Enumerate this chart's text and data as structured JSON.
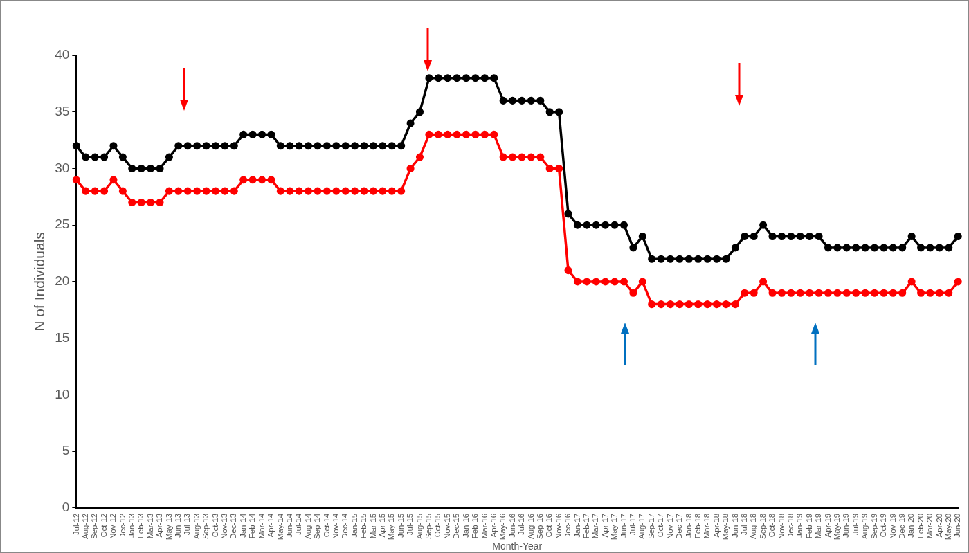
{
  "chart_data": {
    "type": "line",
    "xlabel": "Month-Year",
    "ylabel": "N of Individuals",
    "categories": [
      "Jul-12",
      "Aug-12",
      "Sep-12",
      "Oct-12",
      "Nov-12",
      "Dec-12",
      "Jan-13",
      "Feb-13",
      "Mar-13",
      "Apr-13",
      "May-13",
      "Jun-13",
      "Jul-13",
      "Aug-13",
      "Sep-13",
      "Oct-13",
      "Nov-13",
      "Dec-13",
      "Jan-14",
      "Feb-14",
      "Mar-14",
      "Apr-14",
      "May-14",
      "Jun-14",
      "Jul-14",
      "Aug-14",
      "Sep-14",
      "Oct-14",
      "Nov-14",
      "Dec-14",
      "Jan-15",
      "Feb-15",
      "Mar-15",
      "Apr-15",
      "May-15",
      "Jun-15",
      "Jul-15",
      "Aug-15",
      "Sep-15",
      "Oct-15",
      "Nov-15",
      "Dec-15",
      "Jan-16",
      "Feb-16",
      "Mar-16",
      "Apr-16",
      "May-16",
      "Jun-16",
      "Jul-16",
      "Aug-16",
      "Sep-16",
      "Oct-16",
      "Nov-16",
      "Dec-16",
      "Jan-17",
      "Feb-17",
      "Mar-17",
      "Apr-17",
      "May-17",
      "Jun-17",
      "Jul-17",
      "Aug-17",
      "Sep-17",
      "Oct-17",
      "Nov-17",
      "Dec-17",
      "Jan-18",
      "Feb-18",
      "Mar-18",
      "Apr-18",
      "May-18",
      "Jun-18",
      "Jul-18",
      "Aug-18",
      "Sep-18",
      "Oct-18",
      "Nov-18",
      "Dec-18",
      "Jan-19",
      "Feb-19",
      "Mar-19",
      "Apr-19",
      "May-19",
      "Jun-19",
      "Jul-19",
      "Aug-19",
      "Sep-19",
      "Oct-19",
      "Nov-19",
      "Dec-19",
      "Jan-20",
      "Feb-20",
      "Mar-20",
      "Apr-20",
      "May-20",
      "Jun-20"
    ],
    "series": [
      {
        "color": "#000000",
        "values": [
          32,
          31,
          31,
          31,
          32,
          31,
          30,
          30,
          30,
          30,
          31,
          32,
          32,
          32,
          32,
          32,
          32,
          32,
          33,
          33,
          33,
          33,
          32,
          32,
          32,
          32,
          32,
          32,
          32,
          32,
          32,
          32,
          32,
          32,
          32,
          32,
          34,
          35,
          38,
          38,
          38,
          38,
          38,
          38,
          38,
          38,
          36,
          36,
          36,
          36,
          36,
          35,
          35,
          26,
          25,
          25,
          25,
          25,
          25,
          25,
          23,
          24,
          22,
          22,
          22,
          22,
          22,
          22,
          22,
          22,
          22,
          23,
          24,
          24,
          25,
          24,
          24,
          24,
          24,
          24,
          24,
          23,
          23,
          23,
          23,
          23,
          23,
          23,
          23,
          23,
          24,
          23,
          23,
          23,
          23,
          24
        ]
      },
      {
        "color": "#ff0000",
        "values": [
          29,
          28,
          28,
          28,
          29,
          28,
          27,
          27,
          27,
          27,
          28,
          28,
          28,
          28,
          28,
          28,
          28,
          28,
          29,
          29,
          29,
          29,
          28,
          28,
          28,
          28,
          28,
          28,
          28,
          28,
          28,
          28,
          28,
          28,
          28,
          28,
          30,
          31,
          33,
          33,
          33,
          33,
          33,
          33,
          33,
          33,
          31,
          31,
          31,
          31,
          31,
          30,
          30,
          21,
          20,
          20,
          20,
          20,
          20,
          20,
          19,
          20,
          18,
          18,
          18,
          18,
          18,
          18,
          18,
          18,
          18,
          18,
          19,
          19,
          20,
          19,
          19,
          19,
          19,
          19,
          19,
          19,
          19,
          19,
          19,
          19,
          19,
          19,
          19,
          19,
          20,
          19,
          19,
          19,
          19,
          20
        ]
      }
    ],
    "ylim": [
      0,
      40
    ],
    "yticks": [
      0,
      5,
      10,
      15,
      20,
      25,
      30,
      35,
      40
    ],
    "grid": false,
    "legend": false,
    "marker": "circle",
    "line_style": "solid"
  }
}
